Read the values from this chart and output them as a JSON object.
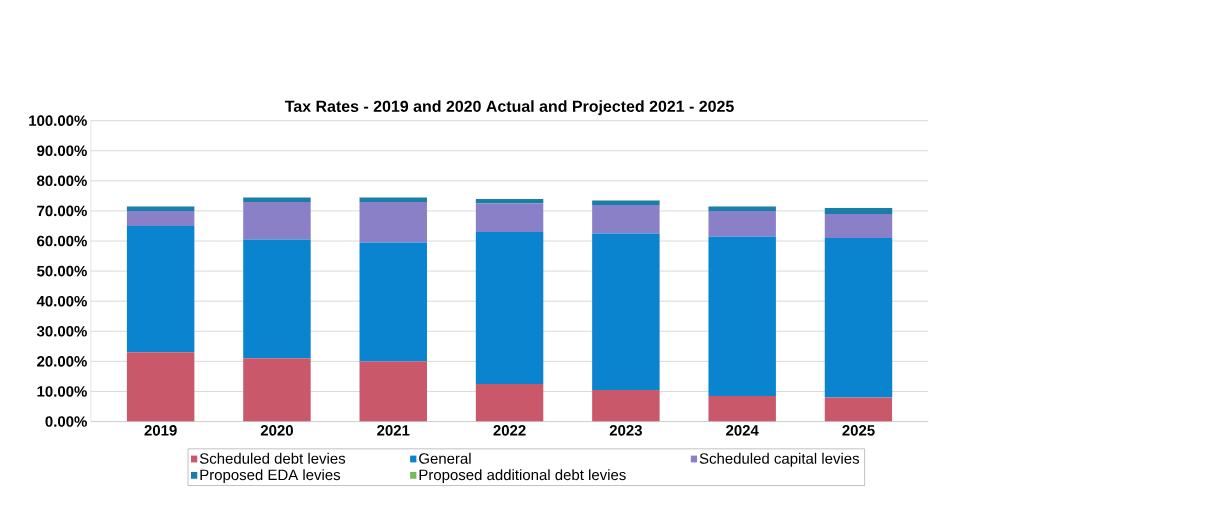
{
  "chart_data": {
    "type": "bar",
    "title": "Tax Rates - 2019 and 2020 Actual and Projected 2021 - 2025",
    "categories": [
      "2019",
      "2020",
      "2021",
      "2022",
      "2023",
      "2024",
      "2025"
    ],
    "stacked": true,
    "series": [
      {
        "name": "Scheduled debt levies",
        "color": "#c9586a",
        "values": [
          23,
          21,
          20,
          12.5,
          10.5,
          8.5,
          8
        ]
      },
      {
        "name": "General",
        "color": "#0a84cf",
        "values": [
          42,
          39.5,
          39.5,
          50.5,
          52,
          53,
          53
        ]
      },
      {
        "name": "Scheduled capital levies",
        "color": "#8a80c8",
        "values": [
          5,
          12.5,
          13.5,
          9.5,
          9.5,
          8.5,
          8
        ]
      },
      {
        "name": "Proposed EDA levies",
        "color": "#1a7fa8",
        "values": [
          1.5,
          1.5,
          1.5,
          1.5,
          1.5,
          1.5,
          2
        ]
      },
      {
        "name": "Proposed additional debt levies",
        "color": "#77b85a",
        "values": [
          0,
          0,
          0,
          0,
          0,
          0,
          0
        ]
      }
    ],
    "ylim": [
      0,
      100
    ],
    "yticks": [
      {
        "value": 0,
        "label": "0.00%"
      },
      {
        "value": 10,
        "label": "10.00%"
      },
      {
        "value": 20,
        "label": "20.00%"
      },
      {
        "value": 30,
        "label": "30.00%"
      },
      {
        "value": 40,
        "label": "40.00%"
      },
      {
        "value": 50,
        "label": "50.00%"
      },
      {
        "value": 60,
        "label": "60.00%"
      },
      {
        "value": 70,
        "label": "70.00%"
      },
      {
        "value": 80,
        "label": "80.00%"
      },
      {
        "value": 90,
        "label": "90.00%"
      },
      {
        "value": 100,
        "label": "100.00%"
      }
    ],
    "grid": "y",
    "legend": "bottom"
  }
}
